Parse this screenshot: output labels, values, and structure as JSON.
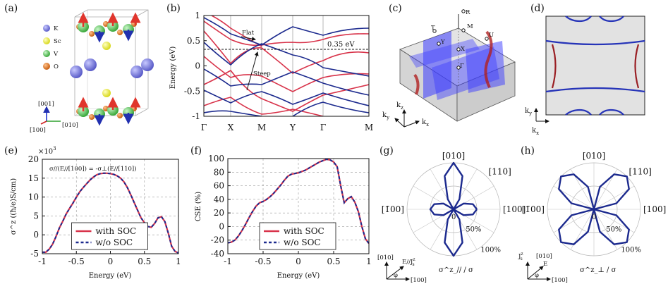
{
  "panel_labels": {
    "a": "(a)",
    "b": "(b)",
    "c": "(c)",
    "d": "(d)",
    "e": "(e)",
    "f": "(f)",
    "g": "(g)",
    "h": "(h)"
  },
  "colors": {
    "red": "#d8334a",
    "blue": "#1c2a8e",
    "dash": "#1c2a8e",
    "K": "#6d6fd8",
    "Sc": "#eeee3c",
    "V": "#57c957",
    "O": "#e07a25"
  },
  "panel_a": {
    "legend": [
      {
        "label": "K",
        "color_key": "K"
      },
      {
        "label": "Sc",
        "color_key": "Sc"
      },
      {
        "label": "V",
        "color_key": "V"
      },
      {
        "label": "O",
        "color_key": "O"
      }
    ],
    "axes": {
      "z": "[001]",
      "y": "[010]",
      "x": "[100]"
    }
  },
  "panel_b": {
    "ylabel": "Energy (eV)",
    "yticks": [
      "1",
      "0.5",
      "0",
      "-0.5",
      "-1"
    ],
    "kpoints": [
      "Γ",
      "X",
      "M",
      "Y",
      "Γ",
      "M"
    ],
    "fermi_level_label": "0.35 eV",
    "annotations": {
      "flat": "Flat",
      "steep": "Steep"
    }
  },
  "panel_c": {
    "points": [
      "R",
      "T",
      "M",
      "U",
      "Y",
      "X",
      "Γ"
    ],
    "axes": {
      "z": "k",
      "zsub": "z",
      "y": "k",
      "ysub": "y",
      "x": "k",
      "xsub": "x"
    }
  },
  "panel_d": {
    "axes": {
      "y": "k",
      "ysub": "y",
      "x": "k",
      "xsub": "x"
    }
  },
  "chart_data": [
    {
      "type": "line",
      "title": "σ//(E//[100]) = -σ⊥(E//[110])",
      "multiplier": "×10",
      "multiplier_exp": "3",
      "xlabel": "Energy (eV)",
      "ylabel": "σ^z ((ħ/e)S/cm)",
      "xlim": [
        -1,
        1
      ],
      "ylim": [
        -5,
        20
      ],
      "xticks": [
        "-1",
        "-0.5",
        "0",
        "0.5",
        "1"
      ],
      "yticks": [
        "20",
        "15",
        "10",
        "5",
        "0",
        "-5"
      ],
      "series": [
        {
          "name": "with SOC",
          "style": "solid",
          "color_key": "red",
          "x": [
            -1.0,
            -0.95,
            -0.9,
            -0.85,
            -0.8,
            -0.75,
            -0.7,
            -0.65,
            -0.6,
            -0.55,
            -0.5,
            -0.45,
            -0.4,
            -0.35,
            -0.3,
            -0.25,
            -0.2,
            -0.15,
            -0.1,
            -0.05,
            0.0,
            0.05,
            0.1,
            0.15,
            0.2,
            0.25,
            0.3,
            0.35,
            0.4,
            0.45,
            0.5,
            0.55,
            0.6,
            0.65,
            0.7,
            0.75,
            0.8,
            0.85,
            0.9,
            0.95,
            1.0
          ],
          "y": [
            -4.6,
            -4.6,
            -3.8,
            -2.5,
            -0.5,
            1.8,
            3.6,
            5.5,
            7.0,
            8.4,
            10.0,
            11.4,
            12.5,
            13.5,
            14.5,
            15.3,
            15.9,
            16.2,
            16.3,
            16.3,
            16.2,
            16.0,
            15.6,
            15.0,
            14.0,
            12.5,
            10.6,
            8.5,
            6.5,
            4.5,
            3.2,
            2.2,
            2.0,
            3.0,
            4.5,
            4.8,
            3.5,
            0.5,
            -3.0,
            -4.4,
            -4.8
          ]
        },
        {
          "name": "w/o SOC",
          "style": "dashed",
          "color_key": "dash",
          "x": [
            -1.0,
            -0.95,
            -0.9,
            -0.85,
            -0.8,
            -0.75,
            -0.7,
            -0.65,
            -0.6,
            -0.55,
            -0.5,
            -0.45,
            -0.4,
            -0.35,
            -0.3,
            -0.25,
            -0.2,
            -0.15,
            -0.1,
            -0.05,
            0.0,
            0.05,
            0.1,
            0.15,
            0.2,
            0.25,
            0.3,
            0.35,
            0.4,
            0.45,
            0.5,
            0.55,
            0.6,
            0.65,
            0.7,
            0.75,
            0.8,
            0.85,
            0.9,
            0.95,
            1.0
          ],
          "y": [
            -4.6,
            -4.6,
            -3.8,
            -2.5,
            -0.5,
            1.8,
            3.6,
            5.5,
            7.0,
            8.4,
            10.0,
            11.4,
            12.5,
            13.5,
            14.5,
            15.3,
            15.9,
            16.2,
            16.3,
            16.3,
            16.2,
            16.0,
            15.6,
            15.0,
            14.0,
            12.5,
            10.6,
            8.5,
            6.5,
            4.5,
            3.2,
            2.2,
            2.0,
            3.0,
            4.5,
            4.8,
            3.5,
            0.5,
            -3.0,
            -4.4,
            -4.8
          ]
        }
      ],
      "legend": "bottom-center"
    },
    {
      "type": "line",
      "xlabel": "Energy (eV)",
      "ylabel": "CSE (%)",
      "xlim": [
        -1,
        1
      ],
      "ylim": [
        -40,
        100
      ],
      "xticks": [
        "-1",
        "-0.5",
        "0",
        "0.5",
        "1"
      ],
      "yticks": [
        "100",
        "80",
        "60",
        "40",
        "20",
        "0",
        "-20",
        "-40"
      ],
      "series": [
        {
          "name": "with SOC",
          "style": "solid",
          "color_key": "red",
          "x": [
            -1.0,
            -0.95,
            -0.9,
            -0.85,
            -0.8,
            -0.75,
            -0.7,
            -0.65,
            -0.6,
            -0.55,
            -0.5,
            -0.45,
            -0.4,
            -0.35,
            -0.3,
            -0.25,
            -0.2,
            -0.15,
            -0.1,
            -0.05,
            0.0,
            0.05,
            0.1,
            0.15,
            0.2,
            0.25,
            0.3,
            0.35,
            0.4,
            0.45,
            0.5,
            0.55,
            0.6,
            0.65,
            0.7,
            0.75,
            0.8,
            0.85,
            0.9,
            0.95,
            1.0
          ],
          "y": [
            -24,
            -23,
            -20,
            -14,
            -6,
            3,
            13,
            22,
            30,
            35,
            37,
            40,
            44,
            49,
            55,
            61,
            68,
            74,
            77,
            78,
            79,
            81,
            83,
            86,
            89,
            92,
            95,
            97,
            99,
            98,
            95,
            88,
            60,
            35,
            41,
            44,
            36,
            22,
            0,
            -18,
            -25
          ]
        },
        {
          "name": "w/o SOC",
          "style": "dashed",
          "color_key": "dash",
          "x": [
            -1.0,
            -0.95,
            -0.9,
            -0.85,
            -0.8,
            -0.75,
            -0.7,
            -0.65,
            -0.6,
            -0.55,
            -0.5,
            -0.45,
            -0.4,
            -0.35,
            -0.3,
            -0.25,
            -0.2,
            -0.15,
            -0.1,
            -0.05,
            0.0,
            0.05,
            0.1,
            0.15,
            0.2,
            0.25,
            0.3,
            0.35,
            0.4,
            0.45,
            0.5,
            0.55,
            0.6,
            0.65,
            0.7,
            0.75,
            0.8,
            0.85,
            0.9,
            0.95,
            1.0
          ],
          "y": [
            -24,
            -23,
            -20,
            -14,
            -6,
            3,
            13,
            22,
            30,
            35,
            37,
            40,
            44,
            49,
            55,
            61,
            68,
            74,
            77,
            78,
            79,
            81,
            83,
            86,
            89,
            92,
            95,
            97,
            99,
            98,
            95,
            88,
            60,
            35,
            41,
            44,
            36,
            22,
            0,
            -18,
            -25
          ]
        }
      ],
      "legend": "bottom-center"
    },
    {
      "type": "polar",
      "quantity": "σ^z_// / σ",
      "direction_labels": {
        "top": "[010]",
        "right": "[100]",
        "left": "[1̄00]",
        "diag": "[110]"
      },
      "radial_ticks": [
        "0",
        "50%",
        "100%"
      ],
      "angles_deg": [
        0,
        15,
        30,
        45,
        60,
        75,
        90,
        105,
        120,
        135,
        150,
        165,
        180,
        195,
        210,
        225,
        240,
        255,
        270,
        285,
        300,
        315,
        330,
        345
      ],
      "radius_pct": [
        50,
        43,
        25,
        0,
        25,
        74,
        100,
        74,
        25,
        0,
        25,
        43,
        50,
        43,
        25,
        0,
        25,
        74,
        100,
        74,
        25,
        0,
        25,
        43
      ],
      "inset": {
        "x": "[100]",
        "y": "[010]",
        "e": "E//J",
        "esup": "z",
        "esub": "s",
        "phi": "φ"
      }
    },
    {
      "type": "polar",
      "quantity": "σ^z_⊥ / σ",
      "direction_labels": {
        "top": "[010]",
        "right": "[100]",
        "left": "[1̄00]",
        "diag": "[110]"
      },
      "radial_ticks": [
        "0",
        "50%",
        "100%"
      ],
      "angles_deg": [
        0,
        15,
        30,
        45,
        60,
        75,
        90,
        105,
        120,
        135,
        150,
        165,
        180,
        195,
        210,
        225,
        240,
        255,
        270,
        285,
        300,
        315,
        330,
        345
      ],
      "radius_pct": [
        0,
        50,
        87,
        100,
        87,
        50,
        0,
        50,
        87,
        100,
        87,
        50,
        0,
        50,
        87,
        100,
        87,
        50,
        0,
        50,
        87,
        100,
        87,
        50
      ],
      "inset": {
        "x": "[100]",
        "y": "[010]",
        "e": "E",
        "j": "J",
        "jsup": "z",
        "jsub": "s",
        "phi": "φ"
      }
    }
  ]
}
